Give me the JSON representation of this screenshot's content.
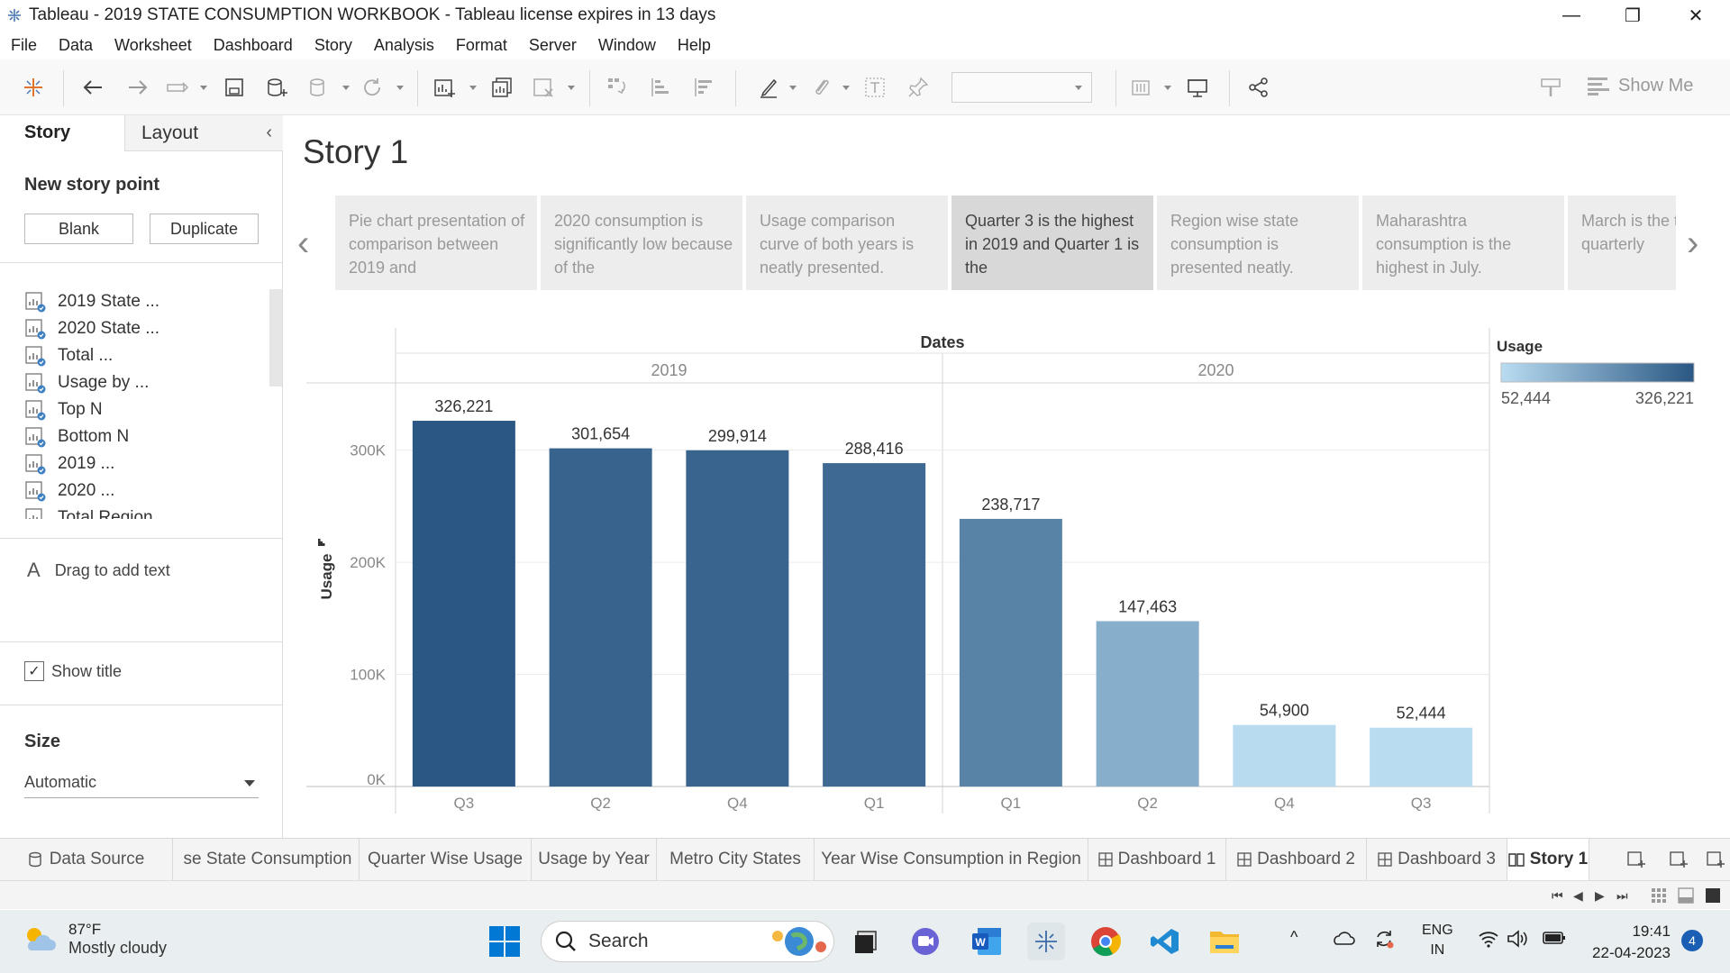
{
  "window": {
    "title": "Tableau - 2019 STATE CONSUMPTION WORKBOOK - Tableau license expires in 13 days",
    "minimize": "—",
    "maximize": "❐",
    "close": "✕"
  },
  "menu": [
    "File",
    "Data",
    "Worksheet",
    "Dashboard",
    "Story",
    "Analysis",
    "Format",
    "Server",
    "Window",
    "Help"
  ],
  "toolbar": {
    "show_me": "Show Me"
  },
  "left_panel": {
    "tab_story": "Story",
    "tab_layout": "Layout",
    "new_story_point": "New story point",
    "blank_button": "Blank",
    "duplicate_button": "Duplicate",
    "sheets": [
      "2019 State ...",
      "2020 State ...",
      "Total ...",
      "Usage by ...",
      "Top N",
      "Bottom N",
      "2019 ...",
      "2020 ...",
      "Total Region"
    ],
    "drag_text": "Drag to add text",
    "show_title": "Show title",
    "size_label": "Size",
    "size_value": "Automatic"
  },
  "story": {
    "title": "Story 1",
    "points": [
      "Pie chart presentation of comparison between 2019 and",
      "2020 consumption is significantly low because of the",
      "Usage comparison curve of both years is neatly presented.",
      "Quarter 3 is the highest in 2019 and Quarter 1 is the",
      "Region wise state consumption is presented neatly.",
      "Maharashtra consumption is the highest in July.",
      "March is the the quarterly"
    ],
    "active_point": 3
  },
  "chart_data": {
    "type": "bar",
    "column_header": "Dates",
    "groups": [
      {
        "year": "2019",
        "categories": [
          "Q3",
          "Q2",
          "Q4",
          "Q1"
        ],
        "values": [
          326221,
          301654,
          299914,
          288416
        ],
        "value_labels": [
          "326,221",
          "301,654",
          "299,914",
          "288,416"
        ]
      },
      {
        "year": "2020",
        "categories": [
          "Q1",
          "Q2",
          "Q4",
          "Q3"
        ],
        "values": [
          238717,
          147463,
          54900,
          52444
        ],
        "value_labels": [
          "238,717",
          "147,463",
          "54,900",
          "52,444"
        ]
      }
    ],
    "ylabel": "Usage",
    "yticks": [
      "0K",
      "100K",
      "200K",
      "300K"
    ],
    "ytick_values": [
      0,
      100000,
      200000,
      300000
    ],
    "ylim": [
      0,
      360000
    ],
    "grid": true,
    "legend": {
      "title": "Usage",
      "min_label": "52,444",
      "max_label": "326,221",
      "min": 52444,
      "max": 326221,
      "color_low": "#b9dcf1",
      "color_high": "#2a5783",
      "placement": "right"
    }
  },
  "sheet_tabs": {
    "data_source": "Data Source",
    "tabs": [
      "se State Consumption",
      "Quarter Wise Usage",
      "Usage by Year",
      "Metro City States",
      "Year Wise Consumption in Region",
      "Dashboard 1",
      "Dashboard 2",
      "Dashboard 3",
      "Story 1"
    ],
    "active": "Story 1"
  },
  "taskbar": {
    "temperature": "87°F",
    "condition": "Mostly cloudy",
    "search_label": "Search",
    "lang_top": "ENG",
    "lang_bottom": "IN",
    "time": "19:41",
    "date": "22-04-2023",
    "notifications": "4"
  }
}
